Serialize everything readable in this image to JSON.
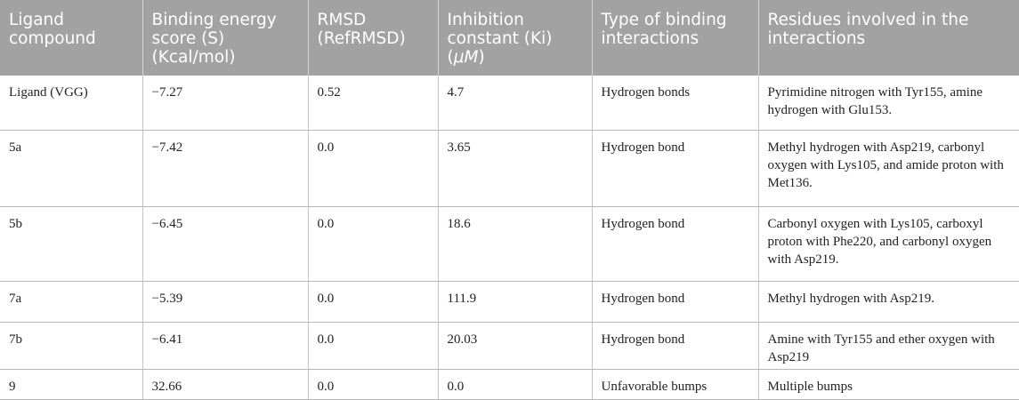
{
  "table": {
    "headers": [
      "Ligand compound",
      "Binding energy score (S) (Kcal/mol)",
      "RMSD (RefRMSD)",
      "Inhibition constant (Ki) (",
      "Type of binding interactions",
      "Residues involved in the interactions"
    ],
    "ki_unit_symbol": "μM",
    "ki_unit_close": ")",
    "rows": [
      [
        "Ligand (VGG)",
        "−7.27",
        "0.52",
        "4.7",
        "Hydrogen bonds",
        "Pyrimidine nitrogen with Tyr155, amine hydrogen with Glu153."
      ],
      [
        "5a",
        "−7.42",
        "0.0",
        "3.65",
        "Hydrogen bond",
        "Methyl hydrogen with Asp219, carbonyl oxygen with Lys105, and amide proton with Met136."
      ],
      [
        "5b",
        "−6.45",
        "0.0",
        "18.6",
        "Hydrogen bond",
        "Carbonyl oxygen with Lys105, carboxyl proton with Phe220, and carbonyl oxygen with Asp219."
      ],
      [
        "7a",
        "−5.39",
        "0.0",
        "111.9",
        "Hydrogen bond",
        "Methyl hydrogen with Asp219."
      ],
      [
        "7b",
        "−6.41",
        "0.0",
        "20.03",
        "Hydrogen bond",
        "Amine with Tyr155 and ether oxygen with Asp219"
      ],
      [
        "9",
        "32.66",
        "0.0",
        "0.0",
        "Unfavorable bumps",
        "Multiple bumps"
      ]
    ]
  }
}
